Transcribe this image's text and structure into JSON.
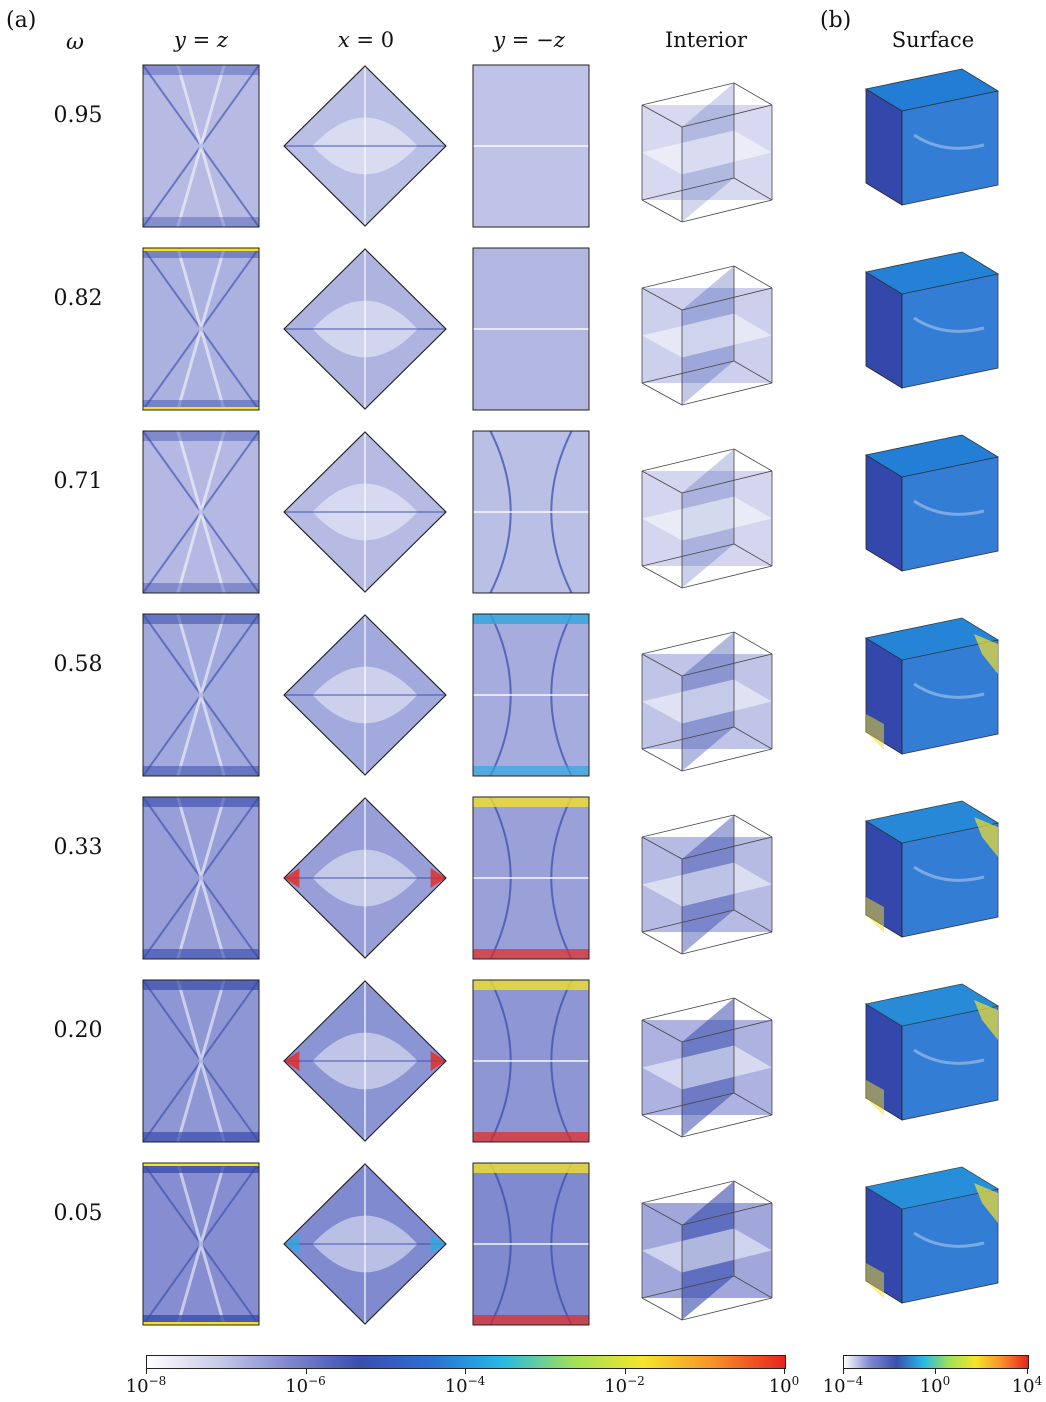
{
  "panels": {
    "a": "(a)",
    "b": "(b)"
  },
  "row_header": "ω",
  "columns": [
    {
      "label_italic_parts": [
        "y",
        "=",
        "z"
      ],
      "key": "y_eq_z"
    },
    {
      "label_italic_parts": [
        "x",
        "=",
        "0"
      ],
      "key": "x_eq_0"
    },
    {
      "label_italic_parts": [
        "y",
        "=",
        "−z"
      ],
      "key": "y_eq_minus_z"
    },
    {
      "label": "Interior",
      "key": "interior"
    },
    {
      "label": "Surface",
      "key": "surface"
    }
  ],
  "column_labels": {
    "y_eq_z": "y = z",
    "x_eq_0": "x = 0",
    "y_eq_minus_z": "y = −z",
    "interior": "Interior",
    "surface": "Surface"
  },
  "omega_values": [
    "0.95",
    "0.82",
    "0.71",
    "0.58",
    "0.33",
    "0.20",
    "0.05"
  ],
  "colorbar_a": {
    "ticks": [
      "10",
      "10",
      "10",
      "10",
      "10"
    ],
    "exponents": [
      "−8",
      "−6",
      "−4",
      "−2",
      "0"
    ],
    "colors": [
      "#ffffff",
      "#c8cbe8",
      "#7f86cf",
      "#3a4fb0",
      "#2b6fd0",
      "#25b8e6",
      "#9fe05a",
      "#f5e52a",
      "#f7902a",
      "#e8231e"
    ]
  },
  "colorbar_b": {
    "ticks": [
      "10",
      "10",
      "10"
    ],
    "exponents": [
      "−4",
      "0",
      "4"
    ],
    "colors": [
      "#ffffff",
      "#7f86cf",
      "#3a4fb0",
      "#25b8e6",
      "#9fe05a",
      "#f5e52a",
      "#f7902a",
      "#e8231e"
    ]
  },
  "palette": {
    "pale": "#b9bde3",
    "light": "#dcdef2",
    "mid": "#6e78c8",
    "deep": "#3448ab",
    "cyan": "#2fa8df",
    "surface_blue": "#1f6fd1",
    "yellow": "#f2e02b",
    "red": "#e4281f"
  }
}
